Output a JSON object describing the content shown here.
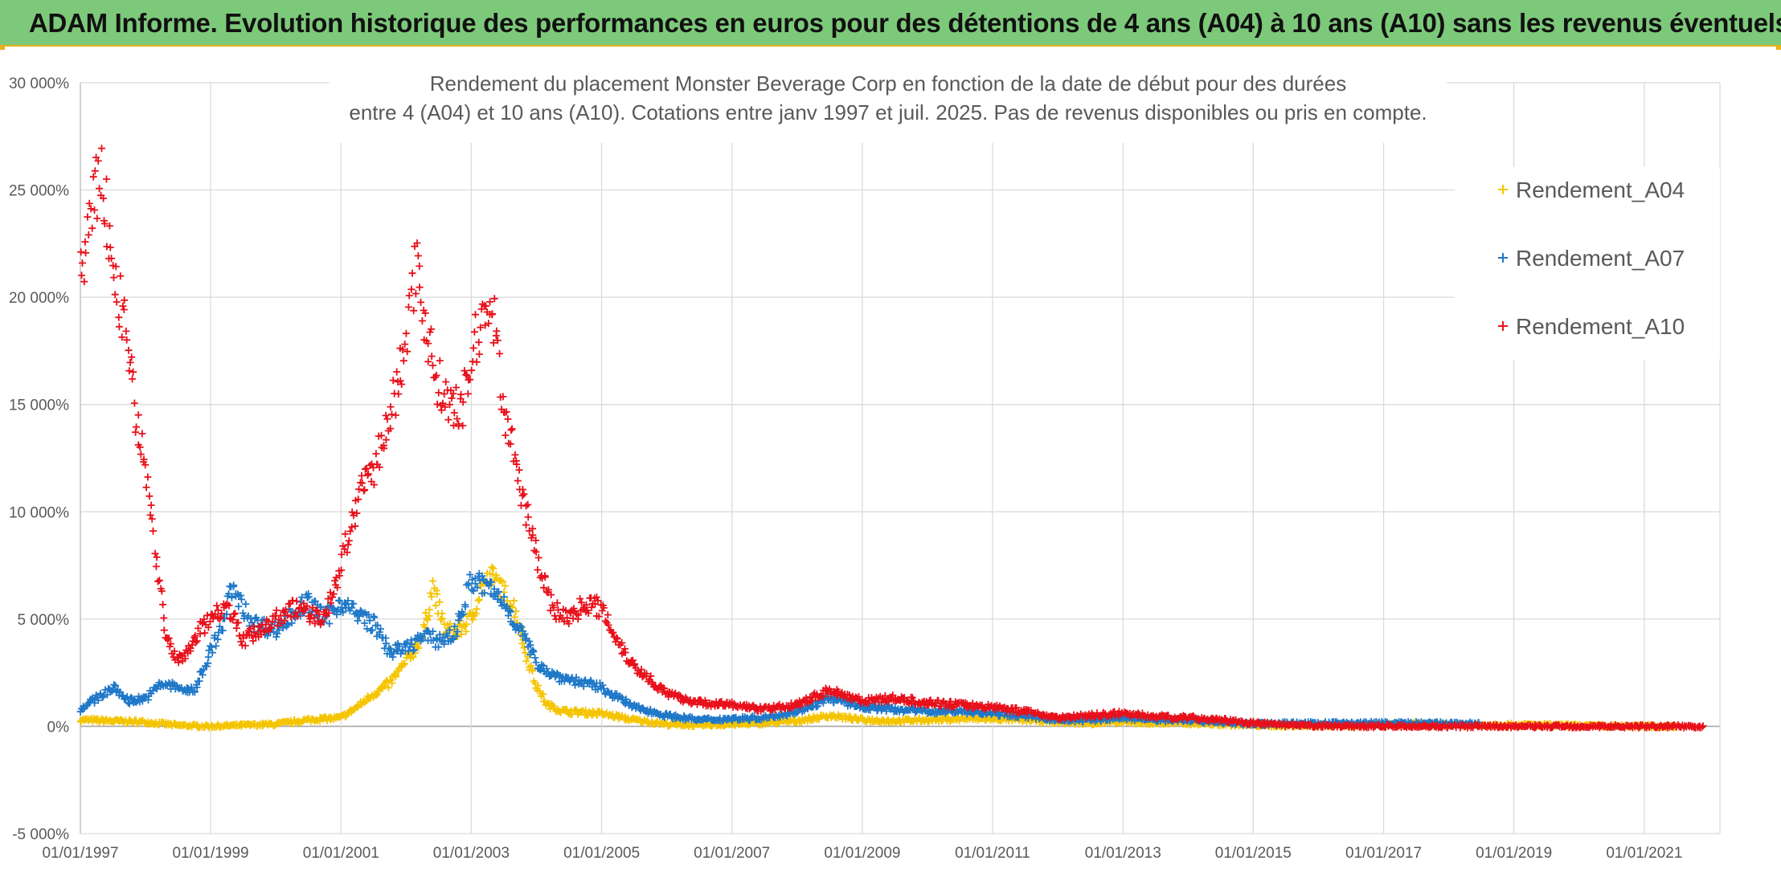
{
  "banner": {
    "title": "ADAM Informe. Evolution historique des performances en euros pour des détentions de 4 ans (A04) à 10 ans (A10) sans les revenus éventuels"
  },
  "colors": {
    "banner_bg": "#7dc97a",
    "accent": "#e8b21c",
    "Rendement_A04": "#f5c400",
    "Rendement_A07": "#1f78c8",
    "Rendement_A10": "#e8101a",
    "grid": "#d9d9d9",
    "axis_text": "#595959"
  },
  "chart_data": {
    "type": "scatter",
    "marker": "plus",
    "title_lines": [
      "Rendement du placement Monster Beverage Corp en fonction de la date de début pour des durées",
      "entre 4 (A04) et 10 ans (A10). Cotations entre janv 1997 et juil. 2025. Pas de revenus disponibles ou pris en compte."
    ],
    "xlabel": "",
    "ylabel": "",
    "x_range": [
      "1997-01-01",
      "2022-03-01"
    ],
    "ylim": [
      -5000,
      30000
    ],
    "y_ticks": [
      -5000,
      0,
      5000,
      10000,
      15000,
      20000,
      25000,
      30000
    ],
    "y_tick_labels": [
      "-5 000%",
      "0%",
      "5 000%",
      "10 000%",
      "15 000%",
      "20 000%",
      "25 000%",
      "30 000%"
    ],
    "x_ticks": [
      "1997-01-01",
      "1999-01-01",
      "2001-01-01",
      "2003-01-01",
      "2005-01-01",
      "2007-01-01",
      "2009-01-01",
      "2011-01-01",
      "2013-01-01",
      "2015-01-01",
      "2017-01-01",
      "2019-01-01",
      "2021-01-01"
    ],
    "x_tick_labels": [
      "01/01/1997",
      "01/01/1999",
      "01/01/2001",
      "01/01/2003",
      "01/01/2005",
      "01/01/2007",
      "01/01/2009",
      "01/01/2011",
      "01/01/2013",
      "01/01/2015",
      "01/01/2017",
      "01/01/2019",
      "01/01/2021"
    ],
    "grid": true,
    "legend_position": "right",
    "series": [
      {
        "name": "Rendement_A04",
        "points": [
          [
            "1997-01-01",
            300
          ],
          [
            "1997-07-01",
            250
          ],
          [
            "1998-01-01",
            200
          ],
          [
            "1998-07-01",
            50
          ],
          [
            "1999-01-01",
            0
          ],
          [
            "1999-07-01",
            50
          ],
          [
            "2000-01-01",
            100
          ],
          [
            "2000-07-01",
            300
          ],
          [
            "2001-01-01",
            400
          ],
          [
            "2001-04-01",
            900
          ],
          [
            "2001-07-01",
            1500
          ],
          [
            "2001-10-01",
            2000
          ],
          [
            "2002-01-01",
            3000
          ],
          [
            "2002-04-01",
            4200
          ],
          [
            "2002-06-01",
            6500
          ],
          [
            "2002-08-01",
            4600
          ],
          [
            "2002-10-01",
            4300
          ],
          [
            "2003-01-01",
            5000
          ],
          [
            "2003-03-01",
            6500
          ],
          [
            "2003-05-01",
            7000
          ],
          [
            "2003-07-01",
            6200
          ],
          [
            "2003-09-01",
            5500
          ],
          [
            "2003-11-01",
            3500
          ],
          [
            "2004-01-01",
            1900
          ],
          [
            "2004-03-01",
            1000
          ],
          [
            "2004-06-01",
            700
          ],
          [
            "2005-01-01",
            600
          ],
          [
            "2005-07-01",
            300
          ],
          [
            "2006-01-01",
            100
          ],
          [
            "2006-07-01",
            50
          ],
          [
            "2007-01-01",
            100
          ],
          [
            "2007-07-01",
            150
          ],
          [
            "2008-01-01",
            250
          ],
          [
            "2008-07-01",
            500
          ],
          [
            "2009-01-01",
            300
          ],
          [
            "2009-07-01",
            250
          ],
          [
            "2010-01-01",
            300
          ],
          [
            "2010-07-01",
            350
          ],
          [
            "2011-01-01",
            350
          ],
          [
            "2011-07-01",
            300
          ],
          [
            "2012-01-01",
            200
          ],
          [
            "2012-07-01",
            150
          ],
          [
            "2013-01-01",
            200
          ],
          [
            "2013-07-01",
            150
          ],
          [
            "2014-01-01",
            150
          ],
          [
            "2014-07-01",
            100
          ],
          [
            "2015-01-01",
            50
          ],
          [
            "2015-07-01",
            30
          ],
          [
            "2016-01-01",
            50
          ],
          [
            "2016-07-01",
            60
          ],
          [
            "2017-01-01",
            80
          ],
          [
            "2017-07-01",
            90
          ],
          [
            "2018-01-01",
            80
          ],
          [
            "2018-07-01",
            60
          ],
          [
            "2019-01-01",
            70
          ],
          [
            "2019-07-01",
            60
          ],
          [
            "2020-01-01",
            30
          ],
          [
            "2020-07-01",
            10
          ],
          [
            "2021-01-01",
            0
          ],
          [
            "2021-07-01",
            0
          ]
        ]
      },
      {
        "name": "Rendement_A07",
        "points": [
          [
            "1997-01-01",
            800
          ],
          [
            "1997-04-01",
            1300
          ],
          [
            "1997-07-01",
            1800
          ],
          [
            "1997-10-01",
            1200
          ],
          [
            "1998-01-01",
            1300
          ],
          [
            "1998-04-01",
            2000
          ],
          [
            "1998-07-01",
            1800
          ],
          [
            "1998-10-01",
            1600
          ],
          [
            "1999-01-01",
            3500
          ],
          [
            "1999-03-01",
            4500
          ],
          [
            "1999-05-01",
            6500
          ],
          [
            "1999-07-01",
            5500
          ],
          [
            "1999-09-01",
            4800
          ],
          [
            "2000-01-01",
            4500
          ],
          [
            "2000-04-01",
            5200
          ],
          [
            "2000-07-01",
            5800
          ],
          [
            "2000-10-01",
            5000
          ],
          [
            "2001-01-01",
            5800
          ],
          [
            "2001-04-01",
            5200
          ],
          [
            "2001-07-01",
            4800
          ],
          [
            "2001-10-01",
            3500
          ],
          [
            "2002-01-01",
            3600
          ],
          [
            "2002-04-01",
            4200
          ],
          [
            "2002-07-01",
            4000
          ],
          [
            "2002-10-01",
            4300
          ],
          [
            "2003-01-01",
            6800
          ],
          [
            "2003-04-01",
            6500
          ],
          [
            "2003-07-01",
            5800
          ],
          [
            "2003-10-01",
            4500
          ],
          [
            "2004-01-01",
            3000
          ],
          [
            "2004-04-01",
            2400
          ],
          [
            "2004-07-01",
            2200
          ],
          [
            "2005-01-01",
            1800
          ],
          [
            "2005-07-01",
            900
          ],
          [
            "2006-01-01",
            500
          ],
          [
            "2006-07-01",
            300
          ],
          [
            "2007-01-01",
            350
          ],
          [
            "2007-07-01",
            400
          ],
          [
            "2008-01-01",
            700
          ],
          [
            "2008-07-01",
            1300
          ],
          [
            "2009-01-01",
            900
          ],
          [
            "2009-07-01",
            800
          ],
          [
            "2010-01-01",
            700
          ],
          [
            "2010-07-01",
            700
          ],
          [
            "2011-01-01",
            600
          ],
          [
            "2011-07-01",
            500
          ],
          [
            "2012-01-01",
            300
          ],
          [
            "2012-07-01",
            300
          ],
          [
            "2013-01-01",
            400
          ],
          [
            "2013-07-01",
            300
          ],
          [
            "2014-01-01",
            300
          ],
          [
            "2014-07-01",
            200
          ],
          [
            "2015-01-01",
            100
          ],
          [
            "2015-07-01",
            150
          ],
          [
            "2016-01-01",
            130
          ],
          [
            "2016-07-01",
            150
          ],
          [
            "2017-01-01",
            150
          ],
          [
            "2017-07-01",
            140
          ],
          [
            "2018-01-01",
            130
          ],
          [
            "2018-07-01",
            120
          ]
        ]
      },
      {
        "name": "Rendement_A10",
        "points": [
          [
            "1997-01-01",
            21000
          ],
          [
            "1997-03-01",
            23500
          ],
          [
            "1997-05-01",
            26000
          ],
          [
            "1997-07-01",
            21000
          ],
          [
            "1997-09-01",
            19000
          ],
          [
            "1997-11-01",
            15000
          ],
          [
            "1998-01-01",
            12000
          ],
          [
            "1998-03-01",
            8000
          ],
          [
            "1998-05-01",
            4000
          ],
          [
            "1998-07-01",
            3000
          ],
          [
            "1998-09-01",
            3500
          ],
          [
            "1998-11-01",
            4500
          ],
          [
            "1999-01-01",
            5000
          ],
          [
            "1999-04-01",
            5800
          ],
          [
            "1999-07-01",
            4000
          ],
          [
            "1999-10-01",
            4500
          ],
          [
            "2000-01-01",
            5000
          ],
          [
            "2000-04-01",
            5500
          ],
          [
            "2000-07-01",
            5300
          ],
          [
            "2000-10-01",
            5000
          ],
          [
            "2001-01-01",
            7500
          ],
          [
            "2001-03-01",
            9500
          ],
          [
            "2001-05-01",
            11000
          ],
          [
            "2001-07-01",
            12000
          ],
          [
            "2001-09-01",
            13500
          ],
          [
            "2001-11-01",
            15500
          ],
          [
            "2002-01-01",
            18000
          ],
          [
            "2002-03-01",
            22000
          ],
          [
            "2002-05-01",
            18000
          ],
          [
            "2002-07-01",
            16000
          ],
          [
            "2002-09-01",
            15000
          ],
          [
            "2002-11-01",
            14500
          ],
          [
            "2003-01-01",
            17000
          ],
          [
            "2003-03-01",
            19000
          ],
          [
            "2003-05-01",
            19500
          ],
          [
            "2003-07-01",
            15000
          ],
          [
            "2003-09-01",
            12500
          ],
          [
            "2003-11-01",
            10000
          ],
          [
            "2004-01-01",
            8000
          ],
          [
            "2004-04-01",
            5500
          ],
          [
            "2004-07-01",
            5000
          ],
          [
            "2004-10-01",
            5800
          ],
          [
            "2005-01-01",
            5500
          ],
          [
            "2005-04-01",
            4000
          ],
          [
            "2005-07-01",
            2800
          ],
          [
            "2005-10-01",
            2200
          ],
          [
            "2006-01-01",
            1500
          ],
          [
            "2006-07-01",
            1100
          ],
          [
            "2007-01-01",
            1000
          ],
          [
            "2007-07-01",
            800
          ],
          [
            "2008-01-01",
            1000
          ],
          [
            "2008-07-01",
            1700
          ],
          [
            "2009-01-01",
            1200
          ],
          [
            "2009-07-01",
            1300
          ],
          [
            "2010-01-01",
            1100
          ],
          [
            "2010-07-01",
            1000
          ],
          [
            "2011-01-01",
            900
          ],
          [
            "2011-07-01",
            700
          ],
          [
            "2012-01-01",
            400
          ],
          [
            "2012-07-01",
            500
          ],
          [
            "2013-01-01",
            600
          ],
          [
            "2013-07-01",
            450
          ],
          [
            "2014-01-01",
            400
          ],
          [
            "2014-07-01",
            300
          ],
          [
            "2015-01-01",
            150
          ],
          [
            "2015-07-01",
            50
          ],
          [
            "2016-01-01",
            20
          ],
          [
            "2017-01-01",
            10
          ],
          [
            "2018-01-01",
            0
          ],
          [
            "2019-01-01",
            0
          ],
          [
            "2020-01-01",
            0
          ],
          [
            "2021-01-01",
            0
          ],
          [
            "2021-12-01",
            0
          ]
        ]
      }
    ]
  }
}
